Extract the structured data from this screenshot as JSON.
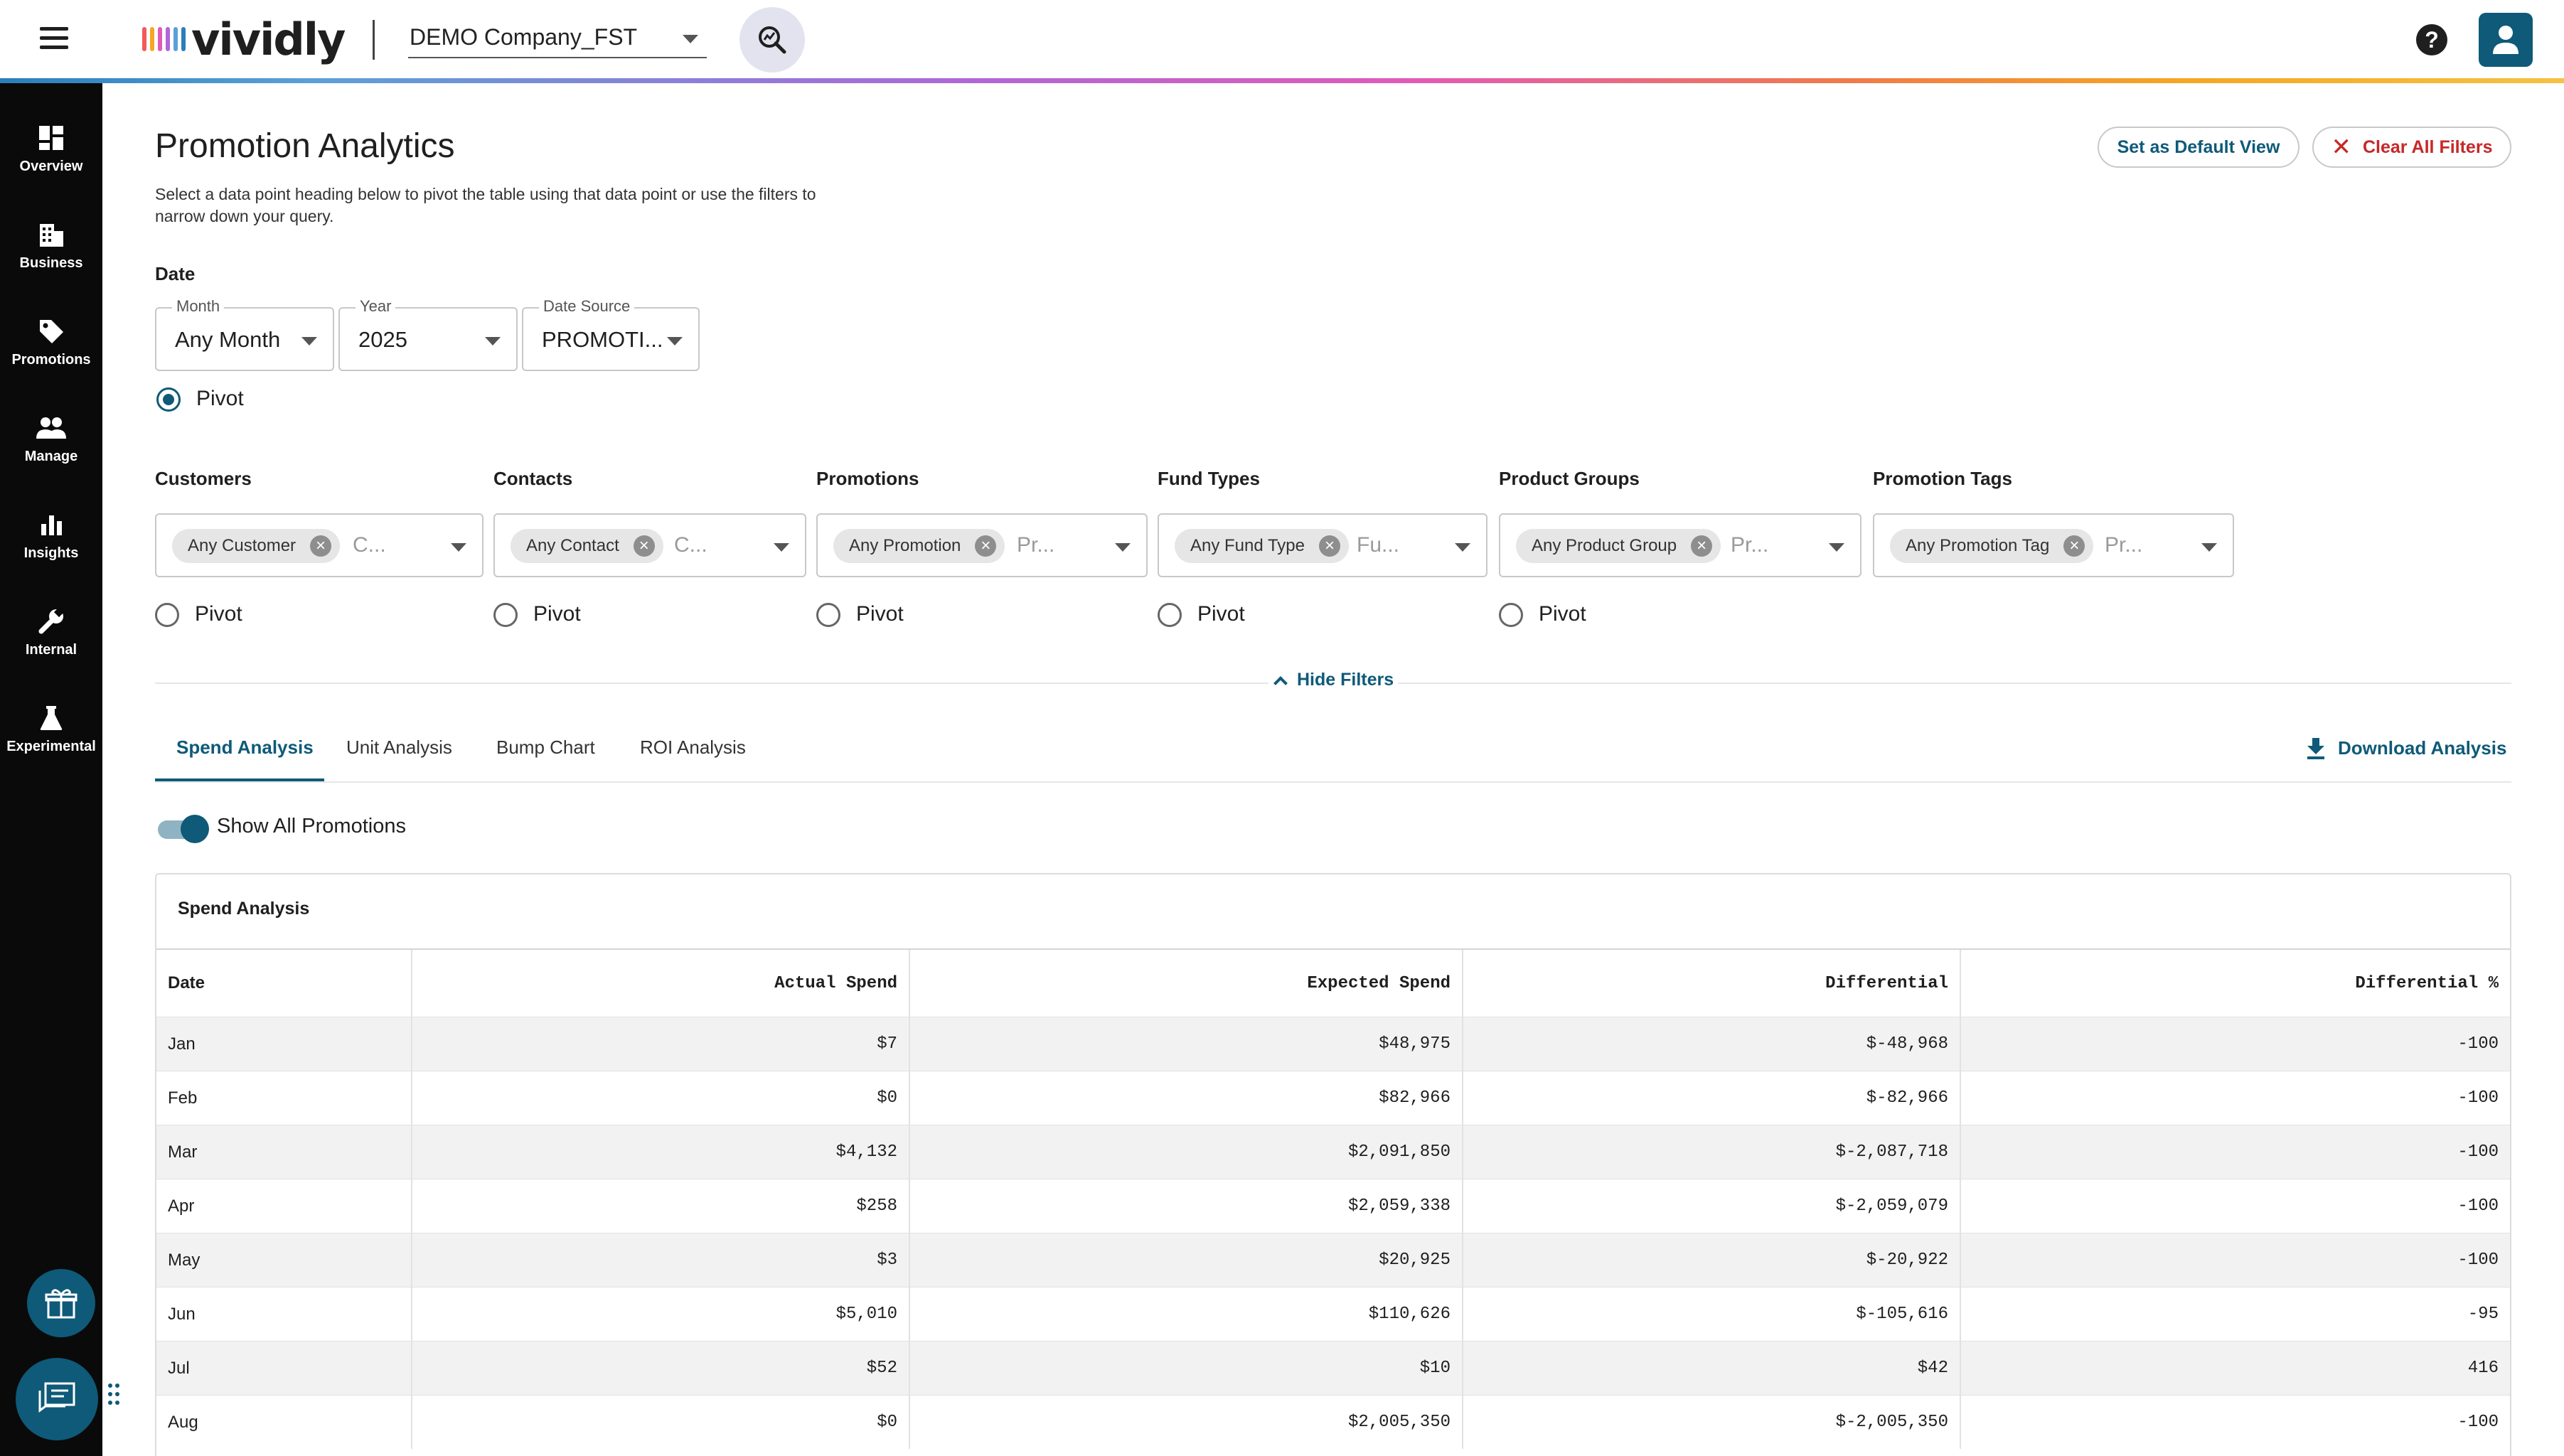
{
  "header": {
    "brand": "vividly",
    "brand_bar_colors": [
      "#f05a5a",
      "#f5a623",
      "#e05bb8",
      "#b067d6",
      "#5aa0d8",
      "#2a7fb9"
    ],
    "company": "DEMO Company_FST",
    "help": "?"
  },
  "sidebar": {
    "items": [
      {
        "label": "Overview",
        "icon": "dashboard-icon"
      },
      {
        "label": "Business",
        "icon": "building-icon"
      },
      {
        "label": "Promotions",
        "icon": "tag-icon"
      },
      {
        "label": "Manage",
        "icon": "people-icon"
      },
      {
        "label": "Insights",
        "icon": "bar-chart-icon"
      },
      {
        "label": "Internal",
        "icon": "wrench-icon"
      },
      {
        "label": "Experimental",
        "icon": "flask-icon"
      }
    ]
  },
  "page": {
    "title": "Promotion Analytics",
    "description": "Select a data point heading below to pivot the table using that data point or use the filters to narrow down your query.",
    "set_default": "Set as Default View",
    "clear_filters": "Clear All Filters"
  },
  "date": {
    "label": "Date",
    "month": {
      "label": "Month",
      "value": "Any Month"
    },
    "year": {
      "label": "Year",
      "value": "2025"
    },
    "source": {
      "label": "Date Source",
      "value": "PROMOTI..."
    },
    "pivot": "Pivot"
  },
  "filters": [
    {
      "label": "Customers",
      "chip": "Any Customer",
      "placeholder": "C...",
      "pivot": "Pivot"
    },
    {
      "label": "Contacts",
      "chip": "Any Contact",
      "placeholder": "C...",
      "pivot": "Pivot"
    },
    {
      "label": "Promotions",
      "chip": "Any Promotion",
      "placeholder": "Pr...",
      "pivot": "Pivot"
    },
    {
      "label": "Fund Types",
      "chip": "Any Fund Type",
      "placeholder": "Fu...",
      "pivot": "Pivot"
    },
    {
      "label": "Product Groups",
      "chip": "Any Product Group",
      "placeholder": "Pr...",
      "pivot": "Pivot"
    },
    {
      "label": "Promotion Tags",
      "chip": "Any Promotion Tag",
      "placeholder": "Pr..."
    }
  ],
  "hide_filters": "Hide Filters",
  "tabs": [
    "Spend Analysis",
    "Unit Analysis",
    "Bump Chart",
    "ROI Analysis"
  ],
  "download": "Download Analysis",
  "toggle": {
    "label": "Show All Promotions",
    "on": true
  },
  "table": {
    "title": "Spend Analysis",
    "columns": [
      "Date",
      "Actual Spend",
      "Expected Spend",
      "Differential",
      "Differential %"
    ],
    "rows": [
      [
        "Jan",
        "$7",
        "$48,975",
        "$-48,968",
        "-100"
      ],
      [
        "Feb",
        "$0",
        "$82,966",
        "$-82,966",
        "-100"
      ],
      [
        "Mar",
        "$4,132",
        "$2,091,850",
        "$-2,087,718",
        "-100"
      ],
      [
        "Apr",
        "$258",
        "$2,059,338",
        "$-2,059,079",
        "-100"
      ],
      [
        "May",
        "$3",
        "$20,925",
        "$-20,922",
        "-100"
      ],
      [
        "Jun",
        "$5,010",
        "$110,626",
        "$-105,616",
        "-95"
      ],
      [
        "Jul",
        "$52",
        "$10",
        "$42",
        "416"
      ],
      [
        "Aug",
        "$0",
        "$2,005,350",
        "$-2,005,350",
        "-100"
      ]
    ]
  },
  "colors": {
    "accent": "#0e5a78",
    "danger": "#c62828",
    "sidebar": "#0a0a0a"
  }
}
